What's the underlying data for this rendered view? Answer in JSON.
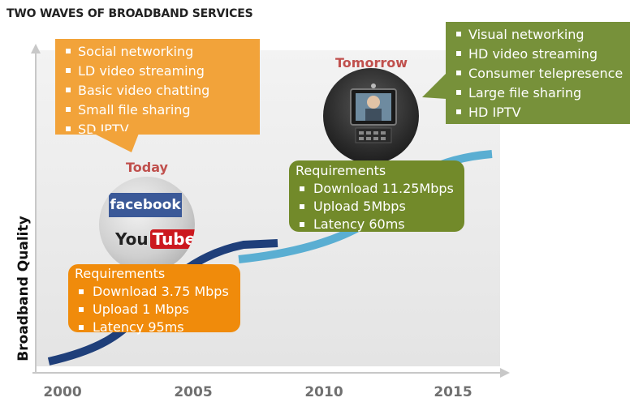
{
  "title": "TWO WAVES OF BROADBAND SERVICES",
  "ylabel": "Broadband Quality",
  "x_ticks": [
    "2000",
    "2005",
    "2010",
    "2015"
  ],
  "today": {
    "label": "Today",
    "services": [
      "Social networking",
      "LD video streaming",
      "Basic video chatting",
      "Small file sharing",
      "SD IPTV"
    ],
    "requirements_title": "Requirements",
    "requirements": [
      "Download 3.75 Mbps",
      "Upload 1 Mbps",
      "Latency 95ms"
    ],
    "logos": {
      "facebook": "facebook",
      "youtube_you": "You",
      "youtube_tube": "Tube"
    }
  },
  "tomorrow": {
    "label": "Tomorrow",
    "services": [
      "Visual networking",
      "HD video streaming",
      "Consumer telepresence",
      "Large file sharing",
      "HD IPTV"
    ],
    "requirements_title": "Requirements",
    "requirements": [
      "Download 11.25Mbps",
      "Upload 5Mbps",
      "Latency 60ms"
    ]
  },
  "colors": {
    "today_callout": "#f2a33a",
    "today_requirements": "#f08b0b",
    "tomorrow_callout": "#77913a",
    "tomorrow_requirements": "#728a2a",
    "curve_today": "#1f3f7a",
    "curve_tomorrow": "#5aaed2",
    "period_label": "#c0504d"
  },
  "icons": {
    "today": "facebook-youtube-logo-icon",
    "tomorrow": "telepresence-device-icon"
  }
}
